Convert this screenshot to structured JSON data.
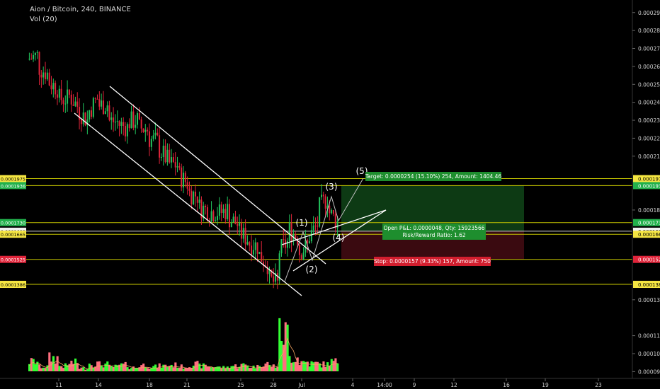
{
  "header": {
    "title": "Aion / Bitcoin, 240, BINANCE",
    "indicator": "Vol (20)"
  },
  "colors": {
    "background": "#000000",
    "up": "#22c55e",
    "down": "#e0243a",
    "vol_up": "#33ff33",
    "vol_down": "#ff6f7f",
    "level": "#c8c800",
    "channel": "#ffffff",
    "target_zone": "#0d3a14",
    "stop_zone": "#3a0a10",
    "target_box": "#1e8e2e",
    "stop_box": "#d21e2e"
  },
  "chart_data": {
    "type": "candlestick",
    "symbol": "Aion / Bitcoin",
    "x_ticks": [
      "11",
      "14",
      "18",
      "21",
      "25",
      "28",
      "Jul",
      "4",
      "14:00",
      "9",
      "12",
      "16",
      "19",
      "23"
    ],
    "y_ticks": [
      "0.0002900",
      "0.0002800",
      "0.0002700",
      "0.0002600",
      "0.0002500",
      "0.0002400",
      "0.0002300",
      "0.0002200",
      "0.0002100",
      "0.0001800",
      "0.0001300",
      "0.0001100",
      "0.0001000",
      "0.0000900"
    ],
    "ylim": [
      8.62e-05,
      0.000297
    ],
    "price_path": [
      [
        0.000264,
        0.000266
      ],
      [
        0.00026,
        0.000256
      ],
      [
        0.000252,
        0.000248
      ],
      [
        0.000242,
        0.000242
      ],
      [
        0.000245,
        0.000238
      ],
      [
        0.000236,
        0.00023
      ],
      [
        0.000234,
        0.000242
      ],
      [
        0.000238,
        0.000239
      ],
      [
        0.00023,
        0.000229
      ],
      [
        0.000228,
        0.000226
      ],
      [
        0.000229,
        0.00023
      ],
      [
        0.000226,
        0.000225
      ],
      [
        0.00022,
        0.000218
      ],
      [
        0.000215,
        0.000208
      ],
      [
        0.000206,
        0.000205
      ],
      [
        0.0002,
        0.000195
      ],
      [
        0.00019,
        0.000188
      ],
      [
        0.000182,
        0.00018
      ],
      [
        0.000179,
        0.000179
      ],
      [
        0.000178,
        0.00018
      ],
      [
        0.000176,
        0.000172
      ],
      [
        0.000168,
        0.000164
      ],
      [
        0.000162,
        0.00016
      ],
      [
        0.000156,
        0.00015
      ],
      [
        0.000142,
        0.0001386
      ],
      [
        0.000156,
        0.000162
      ],
      [
        0.00017,
        0.000165
      ],
      [
        0.000156,
        0.00016
      ],
      [
        0.000164,
        0.000172
      ],
      [
        0.00018,
        0.000187
      ],
      [
        0.00018,
        0.000173
      ]
    ],
    "volume_profile": [
      0.62,
      0.3,
      0.85,
      0.35,
      0.55,
      0.2,
      0.5,
      0.45,
      0.3,
      0.4,
      0.25,
      0.4,
      0.3,
      0.35,
      0.4,
      0.3,
      0.45,
      0.35,
      0.3,
      0.25,
      0.35,
      0.4,
      0.3,
      0.5,
      0.35,
      2.4,
      0.9,
      0.6,
      0.5,
      0.45,
      0.6
    ],
    "volume_scale": "0.0000030 per unit",
    "levels": [
      {
        "price": "0.0001975",
        "value": 0.0001975,
        "label_color": "#f5e642"
      },
      {
        "price": "0.0001936",
        "value": 0.0001936,
        "label_color": "#22b14c"
      },
      {
        "price": "0.0001730",
        "value": 0.000173,
        "label_color": "#22b14c"
      },
      {
        "price": "0.0001682",
        "value": 0.0001682,
        "label_color": "#f0f0f0"
      },
      {
        "price": "0.0001665",
        "value": 0.0001665,
        "label_color": "#f5e642"
      },
      {
        "price": "0.0001525",
        "value": 0.0001525,
        "label_color": "#e0243a"
      },
      {
        "price": "0.0001386",
        "value": 0.0001386,
        "label_color": "#f5e642"
      }
    ],
    "wave_labels": [
      "(1)",
      "(2)",
      "(3)",
      "(4)",
      "(5)"
    ],
    "position": {
      "entry": 0.0001682,
      "target": 0.0001936,
      "stop": 0.0001525,
      "target_label": "Target: 0.0000254 (15.10%) 254, Amount: 1404.46",
      "pnl_label": "Open P&L: 0.0000048, Qty: 15923566",
      "rr_label": "Risk/Reward Ratio: 1.62",
      "stop_label": "Stop: 0.0000157 (9.33%) 157, Amount: 750"
    }
  }
}
